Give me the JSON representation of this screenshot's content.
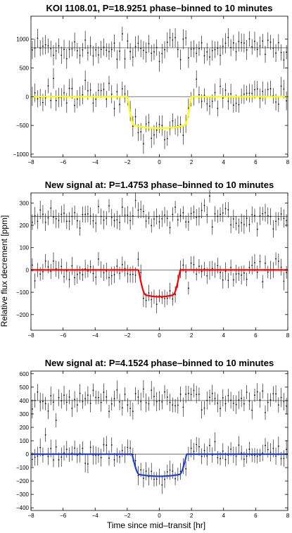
{
  "figure": {
    "ylabel": "Relative flux decrement [ppm]",
    "xlabel": "Time since mid–transit [hr]"
  },
  "chart_data": [
    {
      "type": "scatter",
      "title": "KOI 1108.01, P=18.9251 phase–binned to 10 minutes",
      "xlim": [
        -8,
        8
      ],
      "ylim": [
        -1050,
        1400
      ],
      "x_ticks": [
        -8,
        -6,
        -4,
        -2,
        0,
        2,
        4,
        6,
        8
      ],
      "y_ticks": [
        -1000,
        -500,
        0,
        500,
        1000
      ],
      "grid": false,
      "series": [
        {
          "role": "out-of-phase-data",
          "baseline": 850,
          "scatter": 150,
          "errorbar": 150
        },
        {
          "role": "in-phase-data",
          "baseline": 0,
          "scatter": 150,
          "errorbar": 150
        },
        {
          "role": "transit-model",
          "color": "#ffff00",
          "depth": 550,
          "duration": 4.0,
          "ingress": 0.45
        }
      ],
      "reference_lines": [
        850,
        0
      ]
    },
    {
      "type": "scatter",
      "title": "New signal at: P=1.4753 phase–binned to 10 minutes",
      "xlim": [
        -8,
        8
      ],
      "ylim": [
        -270,
        345
      ],
      "x_ticks": [
        -8,
        -6,
        -4,
        -2,
        0,
        2,
        4,
        6,
        8
      ],
      "y_ticks": [
        -200,
        -100,
        0,
        100,
        200,
        300
      ],
      "grid": false,
      "series": [
        {
          "role": "out-of-phase-data",
          "baseline": 240,
          "scatter": 30,
          "errorbar": 35
        },
        {
          "role": "in-phase-data",
          "baseline": 0,
          "scatter": 30,
          "errorbar": 35
        },
        {
          "role": "transit-model",
          "color": "#ff0000",
          "depth": 120,
          "duration": 2.6,
          "ingress": 0.45
        }
      ],
      "reference_lines": [
        240,
        0
      ]
    },
    {
      "type": "scatter",
      "title": "New signal at: P=4.1524 phase–binned to 10 minutes",
      "xlim": [
        -8,
        8
      ],
      "ylim": [
        -420,
        620
      ],
      "x_ticks": [
        -8,
        -6,
        -4,
        -2,
        0,
        2,
        4,
        6,
        8
      ],
      "y_ticks": [
        -400,
        -300,
        -200,
        -100,
        0,
        100,
        200,
        300,
        400,
        500,
        600
      ],
      "grid": false,
      "series": [
        {
          "role": "out-of-phase-data",
          "baseline": 400,
          "scatter": 55,
          "errorbar": 60
        },
        {
          "role": "in-phase-data",
          "baseline": 0,
          "scatter": 55,
          "errorbar": 60
        },
        {
          "role": "transit-model",
          "color": "#1f3fd6",
          "depth": 165,
          "duration": 3.4,
          "ingress": 0.45
        }
      ],
      "reference_lines": [
        400,
        0
      ]
    }
  ]
}
